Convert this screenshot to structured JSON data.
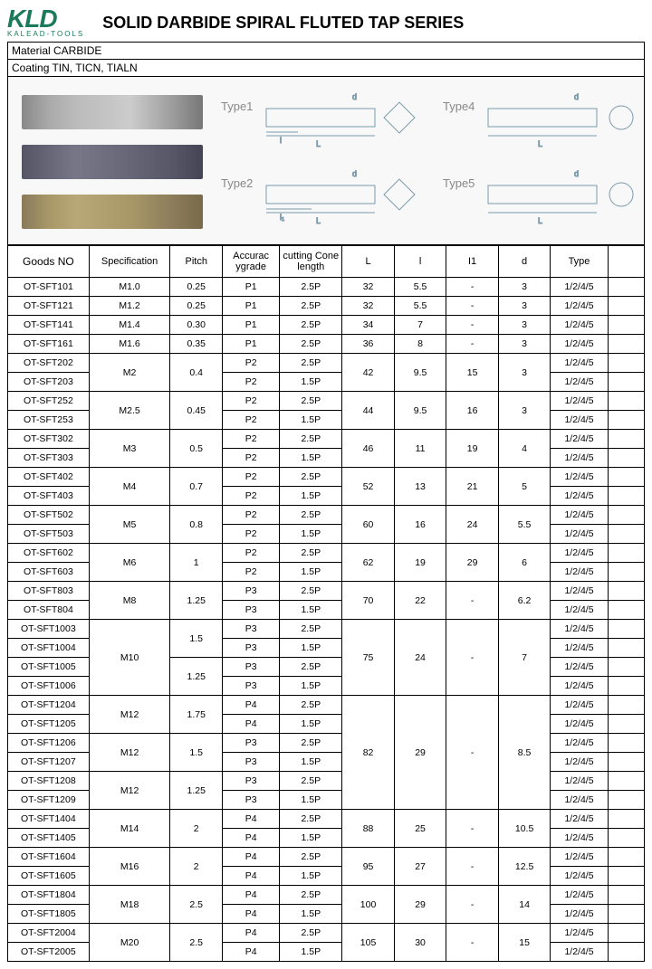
{
  "logo": {
    "main": "KLD",
    "sub": "KALEAD-TOOLS"
  },
  "title": "SOLID DARBIDE SPIRAL FLUTED TAP SERIES",
  "material": "Material  CARBIDE",
  "coating": "Coating   TIN,  TICN,  TIALN",
  "typeLabels": {
    "t1": "Type1",
    "t2": "Type2",
    "t4": "Type4",
    "t5": "Type5"
  },
  "diagramColor": "#7a9aaa",
  "headers": {
    "goods": "Goods NO",
    "spec": "Specification",
    "pitch": "Pitch",
    "acc": "Accurac ygrade",
    "cone": "cutting Cone length",
    "L": "L",
    "l": "l",
    "l1": "I1",
    "d": "d",
    "type": "Type",
    "last": ""
  },
  "groups": [
    {
      "rows": [
        {
          "goods": "OT-SFT101",
          "spec": "M1.0",
          "pitch": "0.25",
          "acc": "P1",
          "cone": "2.5P",
          "L": "32",
          "l": "5.5",
          "l1": "-",
          "d": "3",
          "type": "1/2/4/5"
        }
      ]
    },
    {
      "rows": [
        {
          "goods": "OT-SFT121",
          "spec": "M1.2",
          "pitch": "0.25",
          "acc": "P1",
          "cone": "2.5P",
          "L": "32",
          "l": "5.5",
          "l1": "-",
          "d": "3",
          "type": "1/2/4/5"
        }
      ]
    },
    {
      "rows": [
        {
          "goods": "OT-SFT141",
          "spec": "M1.4",
          "pitch": "0.30",
          "acc": "P1",
          "cone": "2.5P",
          "L": "34",
          "l": "7",
          "l1": "-",
          "d": "3",
          "type": "1/2/4/5"
        }
      ]
    },
    {
      "rows": [
        {
          "goods": "OT-SFT161",
          "spec": "M1.6",
          "pitch": "0.35",
          "acc": "P1",
          "cone": "2.5P",
          "L": "36",
          "l": "8",
          "l1": "-",
          "d": "3",
          "type": "1/2/4/5"
        }
      ]
    },
    {
      "spec": "M2",
      "pitch": "0.4",
      "L": "42",
      "l": "9.5",
      "l1": "15",
      "d": "3",
      "rows": [
        {
          "goods": "OT-SFT202",
          "acc": "P2",
          "cone": "2.5P",
          "type": "1/2/4/5"
        },
        {
          "goods": "OT-SFT203",
          "acc": "P2",
          "cone": "1.5P",
          "type": "1/2/4/5"
        }
      ]
    },
    {
      "spec": "M2.5",
      "pitch": "0.45",
      "L": "44",
      "l": "9.5",
      "l1": "16",
      "d": "3",
      "rows": [
        {
          "goods": "OT-SFT252",
          "acc": "P2",
          "cone": "2.5P",
          "type": "1/2/4/5"
        },
        {
          "goods": "OT-SFT253",
          "acc": "P2",
          "cone": "1.5P",
          "type": "1/2/4/5"
        }
      ]
    },
    {
      "spec": "M3",
      "pitch": "0.5",
      "L": "46",
      "l": "11",
      "l1": "19",
      "d": "4",
      "rows": [
        {
          "goods": "OT-SFT302",
          "acc": "P2",
          "cone": "2.5P",
          "type": "1/2/4/5"
        },
        {
          "goods": "OT-SFT303",
          "acc": "P2",
          "cone": "1.5P",
          "type": "1/2/4/5"
        }
      ]
    },
    {
      "spec": "M4",
      "pitch": "0.7",
      "L": "52",
      "l": "13",
      "l1": "21",
      "d": "5",
      "rows": [
        {
          "goods": "OT-SFT402",
          "acc": "P2",
          "cone": "2.5P",
          "type": "1/2/4/5"
        },
        {
          "goods": "OT-SFT403",
          "acc": "P2",
          "cone": "1.5P",
          "type": "1/2/4/5"
        }
      ]
    },
    {
      "spec": "M5",
      "pitch": "0.8",
      "L": "60",
      "l": "16",
      "l1": "24",
      "d": "5.5",
      "rows": [
        {
          "goods": "OT-SFT502",
          "acc": "P2",
          "cone": "2.5P",
          "type": "1/2/4/5"
        },
        {
          "goods": "OT-SFT503",
          "acc": "P2",
          "cone": "1.5P",
          "type": "1/2/4/5"
        }
      ]
    },
    {
      "spec": "M6",
      "pitch": "1",
      "L": "62",
      "l": "19",
      "l1": "29",
      "d": "6",
      "rows": [
        {
          "goods": "OT-SFT602",
          "acc": "P2",
          "cone": "2.5P",
          "type": "1/2/4/5"
        },
        {
          "goods": "OT-SFT603",
          "acc": "P2",
          "cone": "1.5P",
          "type": "1/2/4/5"
        }
      ]
    },
    {
      "spec": "M8",
      "pitch": "1.25",
      "L": "70",
      "l": "22",
      "l1": "-",
      "d": "6.2",
      "rows": [
        {
          "goods": "OT-SFT803",
          "acc": "P3",
          "cone": "2.5P",
          "type": "1/2/4/5"
        },
        {
          "goods": "OT-SFT804",
          "acc": "P3",
          "cone": "1.5P",
          "type": "1/2/4/5"
        }
      ]
    },
    {
      "spec": "M10",
      "L": "75",
      "l": "24",
      "l1": "-",
      "d": "7",
      "subpitches": [
        {
          "pitch": "1.5",
          "rows": [
            {
              "goods": "OT-SFT1003",
              "acc": "P3",
              "cone": "2.5P",
              "type": "1/2/4/5"
            },
            {
              "goods": "OT-SFT1004",
              "acc": "P3",
              "cone": "1.5P",
              "type": "1/2/4/5"
            }
          ]
        },
        {
          "pitch": "1.25",
          "rows": [
            {
              "goods": "OT-SFT1005",
              "acc": "P3",
              "cone": "2.5P",
              "type": "1/2/4/5"
            },
            {
              "goods": "OT-SFT1006",
              "acc": "P3",
              "cone": "1.5P",
              "type": "1/2/4/5"
            }
          ]
        }
      ]
    },
    {
      "L": "82",
      "l": "29",
      "l1": "-",
      "d": "8.5",
      "subspecs": [
        {
          "spec": "M12",
          "pitch": "1.75",
          "rows": [
            {
              "goods": "OT-SFT1204",
              "acc": "P4",
              "cone": "2.5P",
              "type": "1/2/4/5"
            },
            {
              "goods": "OT-SFT1205",
              "acc": "P4",
              "cone": "1.5P",
              "type": "1/2/4/5"
            }
          ]
        },
        {
          "spec": "M12",
          "pitch": "1.5",
          "rows": [
            {
              "goods": "OT-SFT1206",
              "acc": "P3",
              "cone": "2.5P",
              "type": "1/2/4/5"
            },
            {
              "goods": "OT-SFT1207",
              "acc": "P3",
              "cone": "1.5P",
              "type": "1/2/4/5"
            }
          ]
        },
        {
          "spec": "M12",
          "pitch": "1.25",
          "rows": [
            {
              "goods": "OT-SFT1208",
              "acc": "P3",
              "cone": "2.5P",
              "type": "1/2/4/5"
            },
            {
              "goods": "OT-SFT1209",
              "acc": "P3",
              "cone": "1.5P",
              "type": "1/2/4/5"
            }
          ]
        }
      ]
    },
    {
      "spec": "M14",
      "pitch": "2",
      "L": "88",
      "l": "25",
      "l1": "-",
      "d": "10.5",
      "rows": [
        {
          "goods": "OT-SFT1404",
          "acc": "P4",
          "cone": "2.5P",
          "type": "1/2/4/5"
        },
        {
          "goods": "OT-SFT1405",
          "acc": "P4",
          "cone": "1.5P",
          "type": "1/2/4/5"
        }
      ]
    },
    {
      "spec": "M16",
      "pitch": "2",
      "L": "95",
      "l": "27",
      "l1": "-",
      "d": "12.5",
      "rows": [
        {
          "goods": "OT-SFT1604",
          "acc": "P4",
          "cone": "2.5P",
          "type": "1/2/4/5"
        },
        {
          "goods": "OT-SFT1605",
          "acc": "P4",
          "cone": "1.5P",
          "type": "1/2/4/5"
        }
      ]
    },
    {
      "spec": "M18",
      "pitch": "2.5",
      "L": "100",
      "l": "29",
      "l1": "-",
      "d": "14",
      "rows": [
        {
          "goods": "OT-SFT1804",
          "acc": "P4",
          "cone": "2.5P",
          "type": "1/2/4/5"
        },
        {
          "goods": "OT-SFT1805",
          "acc": "P4",
          "cone": "1.5P",
          "type": "1/2/4/5"
        }
      ]
    },
    {
      "spec": "M20",
      "pitch": "2.5",
      "L": "105",
      "l": "30",
      "l1": "-",
      "d": "15",
      "rows": [
        {
          "goods": "OT-SFT2004",
          "acc": "P4",
          "cone": "2.5P",
          "type": "1/2/4/5"
        },
        {
          "goods": "OT-SFT2005",
          "acc": "P4",
          "cone": "1.5P",
          "type": "1/2/4/5"
        }
      ]
    }
  ]
}
